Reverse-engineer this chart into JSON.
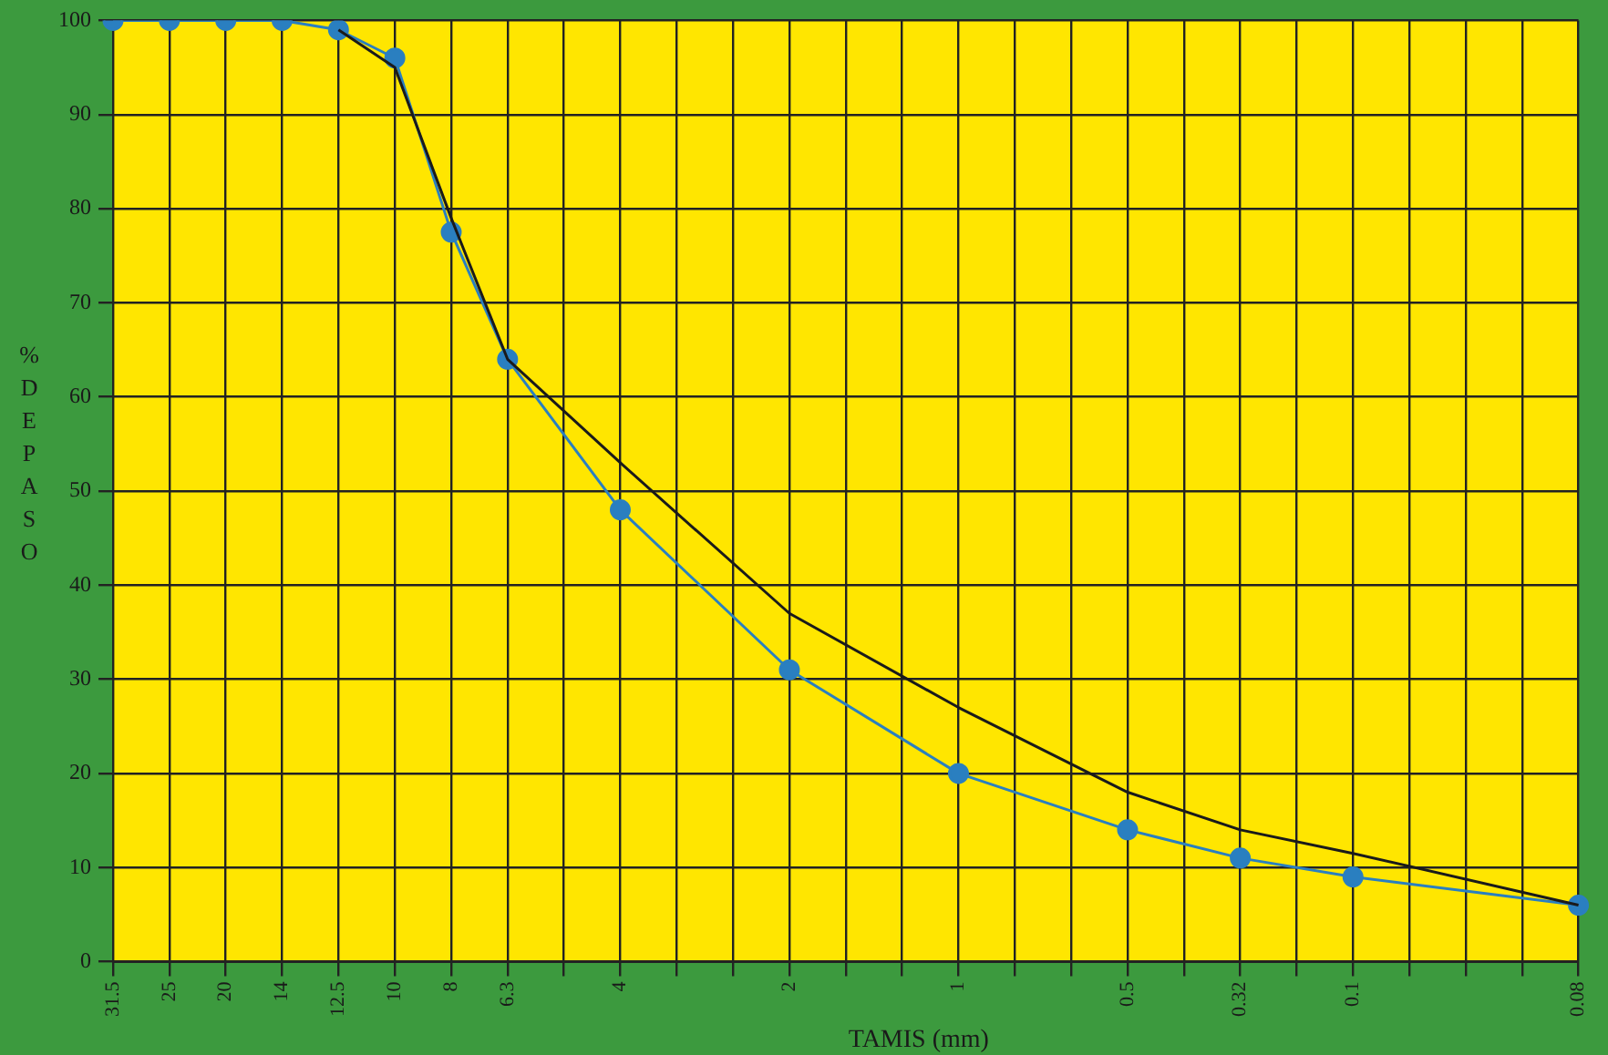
{
  "chart_data": {
    "type": "line",
    "xlabel": "TAMIS (mm)",
    "ylabel": "% DE PASO",
    "categories": [
      "31.5",
      "25",
      "20",
      "14",
      "12.5",
      "10",
      "8",
      "6.3",
      null,
      "4",
      null,
      null,
      "2",
      null,
      null,
      "1",
      null,
      null,
      "0.5",
      null,
      "0.32",
      null,
      "0.1",
      null,
      null,
      null,
      "0.08"
    ],
    "series": [
      {
        "color": "#1a1a1a",
        "marker": "none",
        "values": [
          null,
          null,
          null,
          null,
          99,
          95,
          79,
          64,
          null,
          53,
          null,
          null,
          37,
          null,
          null,
          27,
          null,
          null,
          18,
          null,
          14,
          null,
          11.5,
          null,
          null,
          null,
          6
        ]
      },
      {
        "color": "#2a7fc0",
        "marker": "circle",
        "values": [
          100,
          100,
          100,
          100,
          99,
          96,
          77.5,
          64,
          null,
          48,
          null,
          null,
          31,
          null,
          null,
          20,
          null,
          null,
          14,
          null,
          11,
          null,
          9,
          null,
          null,
          null,
          6
        ]
      }
    ],
    "ylim": [
      0,
      100
    ],
    "yticks": [
      0,
      10,
      20,
      30,
      40,
      50,
      60,
      70,
      80,
      90,
      100
    ],
    "grid": true,
    "legend": false
  }
}
